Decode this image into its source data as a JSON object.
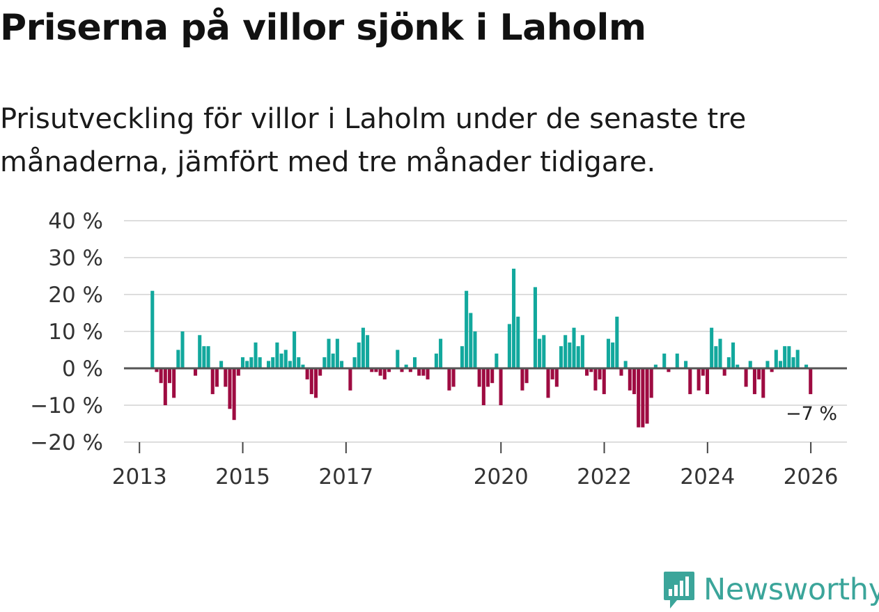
{
  "header": {
    "title": "Priserna på villor sjönk i Laholm",
    "subtitle": "Prisutveckling för villor i Laholm under de senaste tre månaderna, jämfört med tre månader tidigare."
  },
  "brand": {
    "name": "Newsworthy",
    "icon": "newsworthy-logo-icon",
    "color": "#3ba59a"
  },
  "colors": {
    "positive": "#12a89d",
    "negative": "#9e0b41",
    "grid": "#dddddd",
    "zero": "#555555"
  },
  "chart_data": {
    "type": "bar",
    "title": "Priserna på villor sjönk i Laholm",
    "ylabel": "",
    "xlabel": "",
    "unit": "%",
    "ylim": [
      -20,
      40
    ],
    "xlim": [
      2012.7,
      2026.7
    ],
    "y_ticks": [
      40,
      30,
      20,
      10,
      0,
      -10,
      -20
    ],
    "y_tick_labels": [
      "40 %",
      "30 %",
      "20 %",
      "10 %",
      "0 %",
      "−10 %",
      "−20 %"
    ],
    "x_ticks": [
      2013,
      2015,
      2017,
      2020,
      2022,
      2024,
      2026
    ],
    "x_tick_labels": [
      "2013",
      "2015",
      "2017",
      "2020",
      "2022",
      "2024",
      "2026"
    ],
    "start": 2013.25,
    "step": 0.0833,
    "values": [
      21,
      -1,
      -4,
      -10,
      -4,
      -8,
      5,
      10,
      0,
      0,
      -2,
      9,
      6,
      6,
      -7,
      -5,
      2,
      -5,
      -11,
      -14,
      -2,
      3,
      2,
      3,
      7,
      3,
      0,
      2,
      3,
      7,
      4,
      5,
      2,
      10,
      3,
      1,
      -3,
      -7,
      -8,
      -2,
      3,
      8,
      4,
      8,
      2,
      0,
      -6,
      3,
      7,
      11,
      9,
      -1,
      -1,
      -2,
      -3,
      -1,
      0,
      5,
      -1,
      1,
      -1,
      3,
      -2,
      -2,
      -3,
      0,
      4,
      8,
      0,
      -6,
      -5,
      0,
      6,
      21,
      15,
      10,
      -5,
      -10,
      -5,
      -4,
      4,
      -10,
      0,
      12,
      27,
      14,
      -6,
      -4,
      0,
      22,
      8,
      9,
      -8,
      -3,
      -5,
      6,
      9,
      7,
      11,
      6,
      9,
      -2,
      -1,
      -6,
      -3,
      -7,
      8,
      7,
      14,
      -2,
      2,
      -6,
      -7,
      -16,
      -16,
      -15,
      -8,
      1,
      0,
      4,
      -1,
      0,
      4,
      0,
      2,
      -7,
      0,
      -6,
      -2,
      -7,
      11,
      6,
      8,
      -2,
      3,
      7,
      1,
      0,
      -5,
      2,
      -7,
      -3,
      -8,
      2,
      -1,
      5,
      2,
      6,
      6,
      3,
      5,
      0,
      1,
      -7
    ],
    "annotation": {
      "label": "−7 %",
      "value": -7
    }
  }
}
